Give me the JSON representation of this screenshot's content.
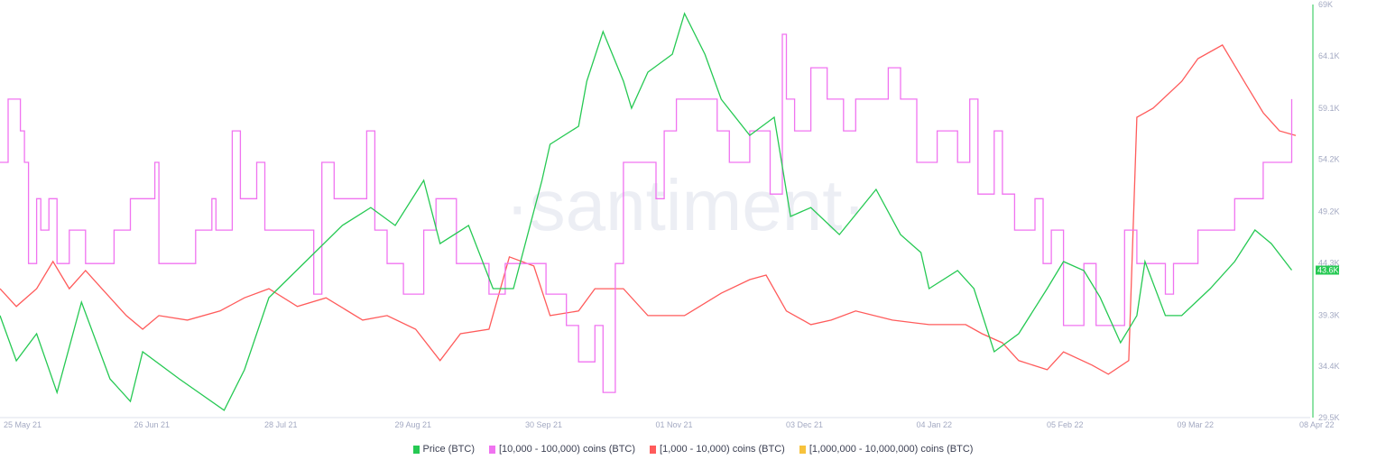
{
  "watermark": "·santiment·",
  "chart_data": {
    "type": "line",
    "x_unit": "days since 25 May 21",
    "x_range": [
      0,
      318
    ],
    "x_ticks": [
      {
        "day": 0,
        "label": "25 May 21"
      },
      {
        "day": 32,
        "label": "26 Jun 21"
      },
      {
        "day": 64,
        "label": "28 Jul 21"
      },
      {
        "day": 96,
        "label": "29 Aug 21"
      },
      {
        "day": 128,
        "label": "30 Sep 21"
      },
      {
        "day": 160,
        "label": "01 Nov 21"
      },
      {
        "day": 192,
        "label": "03 Dec 21"
      },
      {
        "day": 224,
        "label": "04 Jan 22"
      },
      {
        "day": 256,
        "label": "05 Feb 22"
      },
      {
        "day": 288,
        "label": "09 Mar 22"
      },
      {
        "day": 318,
        "label": "08 Apr 22"
      }
    ],
    "y_axis": {
      "position": "right",
      "range": [
        29.5,
        69
      ],
      "ticks": [
        "69K",
        "64.1K",
        "59.1K",
        "54.2K",
        "49.2K",
        "44.3K",
        "39.3K",
        "34.4K",
        "29.5K"
      ],
      "tick_values": [
        69,
        64.1,
        59.1,
        54.2,
        49.2,
        44.3,
        39.3,
        34.4,
        29.5
      ]
    },
    "current_price_label": "43.6K",
    "current_price_value": 43.6,
    "grid": false,
    "legend_position": "bottom-center",
    "series": [
      {
        "name": "Price (BTC)",
        "color": "#26c953",
        "axis": "price",
        "step": false,
        "points": [
          [
            0,
            39.25
          ],
          [
            4,
            34.93
          ],
          [
            9,
            37.52
          ],
          [
            14,
            31.9
          ],
          [
            20,
            40.54
          ],
          [
            27,
            33.2
          ],
          [
            32,
            31.05
          ],
          [
            35,
            35.8
          ],
          [
            44,
            33.2
          ],
          [
            55,
            30.2
          ],
          [
            60,
            34.07
          ],
          [
            66,
            40.97
          ],
          [
            75,
            44.42
          ],
          [
            84,
            47.87
          ],
          [
            91,
            49.59
          ],
          [
            97,
            47.87
          ],
          [
            104,
            52.18
          ],
          [
            108,
            46.14
          ],
          [
            115,
            47.87
          ],
          [
            121,
            41.83
          ],
          [
            126,
            41.83
          ],
          [
            133,
            52.18
          ],
          [
            135,
            55.63
          ],
          [
            142,
            57.36
          ],
          [
            144,
            61.67
          ],
          [
            148,
            66.41
          ],
          [
            153,
            61.67
          ],
          [
            155,
            59.08
          ],
          [
            159,
            62.53
          ],
          [
            165,
            64.25
          ],
          [
            168,
            68.14
          ],
          [
            173,
            64.25
          ],
          [
            177,
            59.94
          ],
          [
            184,
            56.49
          ],
          [
            190,
            58.22
          ],
          [
            194,
            48.73
          ],
          [
            199,
            49.59
          ],
          [
            206,
            47.0
          ],
          [
            215,
            51.32
          ],
          [
            221,
            47.0
          ],
          [
            226,
            45.28
          ],
          [
            228,
            41.83
          ],
          [
            235,
            43.56
          ],
          [
            239,
            41.83
          ],
          [
            244,
            35.8
          ],
          [
            250,
            37.52
          ],
          [
            257,
            41.83
          ],
          [
            261,
            44.42
          ],
          [
            266,
            43.56
          ],
          [
            270,
            41.0
          ],
          [
            275,
            36.66
          ],
          [
            279,
            39.25
          ],
          [
            281,
            44.42
          ],
          [
            286,
            39.25
          ],
          [
            290,
            39.25
          ],
          [
            297,
            41.83
          ],
          [
            303,
            44.42
          ],
          [
            308,
            47.44
          ],
          [
            312,
            46.14
          ],
          [
            317,
            43.6
          ]
        ]
      },
      {
        "name": "[10,000 - 100,000) coins (BTC)",
        "color": "#f073f0",
        "axis": "hidden",
        "step": true,
        "points": [
          [
            0,
            61.8
          ],
          [
            2,
            77.1
          ],
          [
            5,
            69.4
          ],
          [
            6,
            61.8
          ],
          [
            7,
            37.3
          ],
          [
            9,
            53.0
          ],
          [
            10,
            45.4
          ],
          [
            12,
            53.0
          ],
          [
            14,
            37.3
          ],
          [
            17,
            45.4
          ],
          [
            21,
            37.3
          ],
          [
            28,
            45.4
          ],
          [
            32,
            53.0
          ],
          [
            38,
            61.8
          ],
          [
            39,
            37.3
          ],
          [
            48,
            45.4
          ],
          [
            52,
            53.0
          ],
          [
            53,
            45.4
          ],
          [
            57,
            69.4
          ],
          [
            59,
            53.0
          ],
          [
            63,
            61.8
          ],
          [
            65,
            45.4
          ],
          [
            74,
            45.4
          ],
          [
            77,
            29.9
          ],
          [
            79,
            61.8
          ],
          [
            82,
            53.0
          ],
          [
            89,
            53.0
          ],
          [
            90,
            69.4
          ],
          [
            92,
            45.4
          ],
          [
            95,
            37.3
          ],
          [
            99,
            29.9
          ],
          [
            104,
            45.4
          ],
          [
            107,
            53.0
          ],
          [
            112,
            37.3
          ],
          [
            120,
            29.9
          ],
          [
            124,
            37.3
          ],
          [
            134,
            29.9
          ],
          [
            139,
            22.3
          ],
          [
            142,
            13.5
          ],
          [
            146,
            22.3
          ],
          [
            148,
            6.1
          ],
          [
            151,
            37.3
          ],
          [
            153,
            61.8
          ],
          [
            161,
            53.0
          ],
          [
            163,
            69.4
          ],
          [
            166,
            77.1
          ],
          [
            170,
            77.1
          ],
          [
            176,
            69.4
          ],
          [
            179,
            61.8
          ],
          [
            184,
            69.4
          ],
          [
            189,
            54.1
          ],
          [
            192,
            92.8
          ],
          [
            193,
            77.1
          ],
          [
            195,
            69.4
          ],
          [
            199,
            84.7
          ],
          [
            203,
            77.1
          ],
          [
            207,
            69.4
          ],
          [
            210,
            77.1
          ],
          [
            218,
            84.7
          ],
          [
            221,
            77.1
          ],
          [
            225,
            61.8
          ],
          [
            230,
            69.4
          ],
          [
            235,
            61.8
          ],
          [
            238,
            77.1
          ],
          [
            240,
            54.1
          ],
          [
            244,
            69.4
          ],
          [
            246,
            54.1
          ],
          [
            249,
            45.4
          ],
          [
            254,
            53.0
          ],
          [
            256,
            37.3
          ],
          [
            258,
            45.4
          ],
          [
            261,
            22.3
          ],
          [
            266,
            37.3
          ],
          [
            269,
            22.3
          ],
          [
            276,
            45.4
          ],
          [
            279,
            37.3
          ],
          [
            286,
            29.9
          ],
          [
            288,
            37.3
          ],
          [
            292,
            37.3
          ],
          [
            294,
            45.4
          ],
          [
            299,
            45.4
          ],
          [
            303,
            53.0
          ],
          [
            310,
            61.8
          ],
          [
            314,
            61.8
          ],
          [
            317,
            77.1
          ]
        ]
      },
      {
        "name": "[1,000 - 10,000) coins (BTC)",
        "color": "#ff5b5b",
        "axis": "hidden",
        "step": false,
        "points": [
          [
            0,
            31.2
          ],
          [
            4,
            26.9
          ],
          [
            9,
            31.2
          ],
          [
            13,
            37.8
          ],
          [
            17,
            31.2
          ],
          [
            21,
            35.6
          ],
          [
            25,
            31.2
          ],
          [
            31,
            24.7
          ],
          [
            35,
            21.4
          ],
          [
            39,
            24.7
          ],
          [
            46,
            23.6
          ],
          [
            54,
            25.8
          ],
          [
            60,
            29.0
          ],
          [
            66,
            31.2
          ],
          [
            73,
            26.9
          ],
          [
            80,
            29.0
          ],
          [
            89,
            23.6
          ],
          [
            95,
            24.7
          ],
          [
            102,
            21.4
          ],
          [
            108,
            13.8
          ],
          [
            113,
            20.3
          ],
          [
            120,
            21.4
          ],
          [
            125,
            38.9
          ],
          [
            131,
            36.7
          ],
          [
            135,
            24.7
          ],
          [
            142,
            25.8
          ],
          [
            146,
            31.2
          ],
          [
            153,
            31.2
          ],
          [
            159,
            24.7
          ],
          [
            168,
            24.7
          ],
          [
            177,
            30.1
          ],
          [
            184,
            33.4
          ],
          [
            188,
            34.5
          ],
          [
            193,
            25.8
          ],
          [
            199,
            22.5
          ],
          [
            204,
            23.6
          ],
          [
            210,
            25.8
          ],
          [
            219,
            23.6
          ],
          [
            228,
            22.5
          ],
          [
            237,
            22.5
          ],
          [
            241,
            20.3
          ],
          [
            246,
            18.1
          ],
          [
            250,
            13.8
          ],
          [
            257,
            11.6
          ],
          [
            261,
            15.9
          ],
          [
            268,
            12.7
          ],
          [
            272,
            10.5
          ],
          [
            277,
            13.8
          ],
          [
            279,
            72.7
          ],
          [
            283,
            74.9
          ],
          [
            290,
            81.4
          ],
          [
            294,
            86.9
          ],
          [
            300,
            90.2
          ],
          [
            306,
            80.3
          ],
          [
            310,
            73.8
          ],
          [
            314,
            69.4
          ],
          [
            318,
            68.3
          ]
        ]
      },
      {
        "name": "[1,000,000 - 10,000,000) coins (BTC)",
        "color": "#f7c23c",
        "axis": "hidden",
        "step": false,
        "points": []
      }
    ]
  }
}
